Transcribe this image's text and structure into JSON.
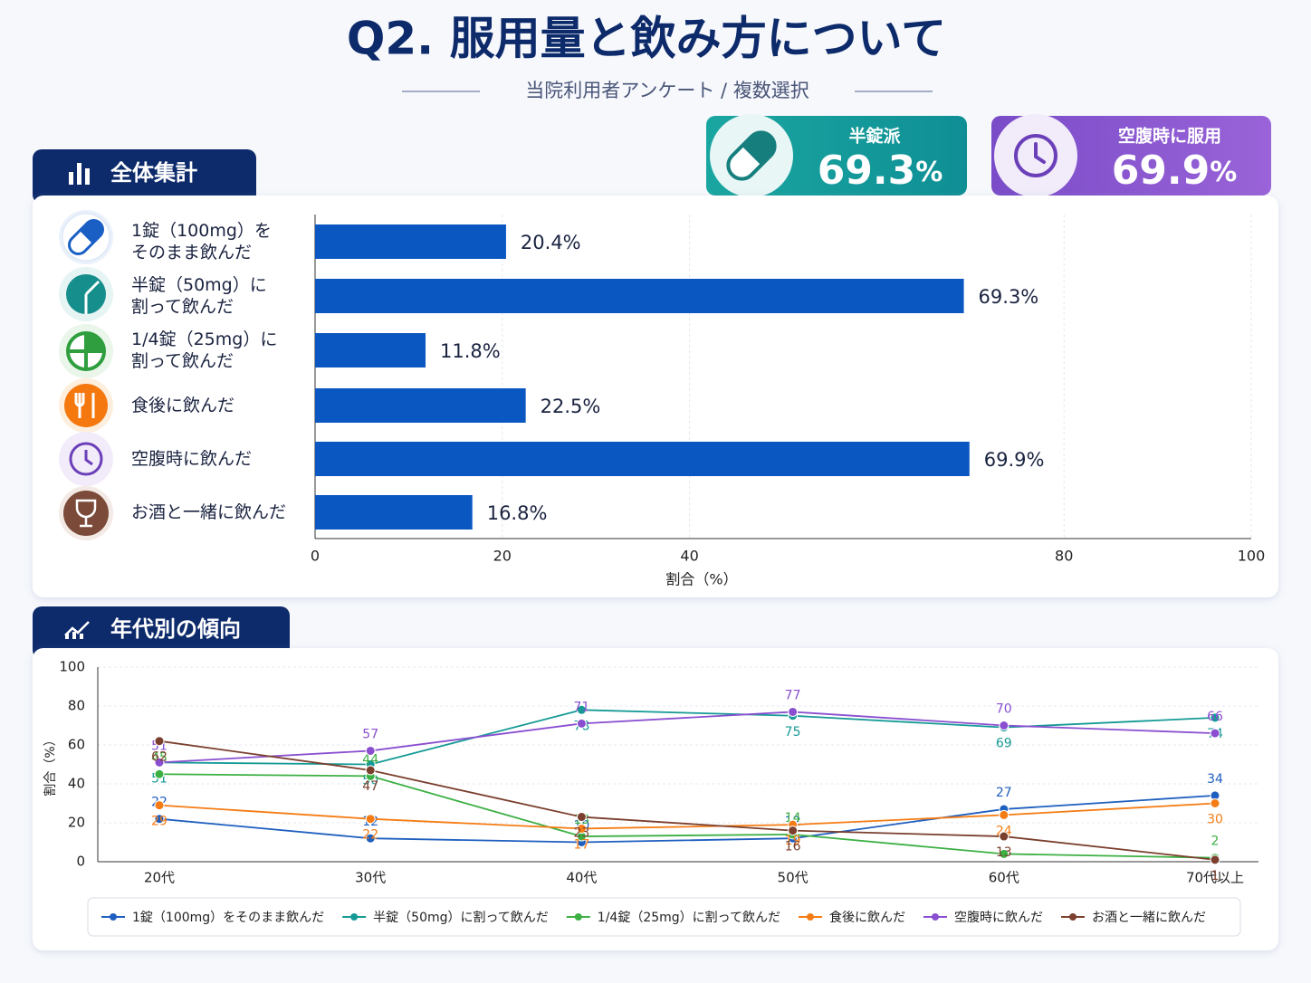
{
  "header": {
    "title": "Q2. 服用量と飲み方について",
    "subtitle": "当院利用者アンケート / 複数選択"
  },
  "cards": [
    {
      "label": "半錠派",
      "value": "69.3",
      "unit": "%"
    },
    {
      "label": "空腹時に服用",
      "value": "69.9",
      "unit": "%"
    }
  ],
  "sections": [
    "全体集計",
    "年代別の傾向"
  ],
  "chart_data": [
    {
      "type": "hbar",
      "categories": [
        "1錠（100mg）を\nそのまま飲んだ",
        "半錠（50mg）に\n割って飲んだ",
        "1/4錠（25mg）に\n割って飲んだ",
        "食後に飲んだ",
        "空腹時に飲んだ",
        "お酒と一緒に飲んだ"
      ],
      "values": [
        20.4,
        69.3,
        11.8,
        22.5,
        69.9,
        16.8
      ],
      "value_labels": [
        "20.4%",
        "69.3%",
        "11.8%",
        "22.5%",
        "69.9%",
        "16.8%"
      ],
      "color": "#0b57c2",
      "xlim": [
        0,
        100
      ],
      "xticks": [
        0,
        20,
        40,
        80,
        100
      ],
      "xlabel": "割合（%）",
      "grid": true
    },
    {
      "type": "line",
      "categories": [
        "20代",
        "30代",
        "40代",
        "50代",
        "60代",
        "70代以上"
      ],
      "series": [
        {
          "name": "1錠（100mg）をそのまま飲んだ",
          "color": "#1f5fbf",
          "values": [
            22,
            12,
            10,
            12,
            27,
            34
          ]
        },
        {
          "name": "半錠（50mg）に割って飲んだ",
          "color": "#169a96",
          "values": [
            51,
            50,
            78,
            75,
            69,
            74
          ]
        },
        {
          "name": "1/4錠（25mg）に割って飲んだ",
          "color": "#3cb043",
          "values": [
            45,
            44,
            13,
            14,
            4,
            2
          ]
        },
        {
          "name": "食後に飲んだ",
          "color": "#f57c14",
          "values": [
            29,
            22,
            17,
            19,
            24,
            30
          ]
        },
        {
          "name": "空腹時に飲んだ",
          "color": "#8a4fd0",
          "values": [
            51,
            57,
            71,
            77,
            70,
            66
          ]
        },
        {
          "name": "お酒と一緒に飲んだ",
          "color": "#7b3f2e",
          "values": [
            62,
            47,
            23,
            16,
            13,
            1
          ]
        }
      ],
      "ylim": [
        0,
        100
      ],
      "yticks": [
        0,
        20,
        40,
        60,
        80,
        100
      ],
      "ylabel": "割合（%）",
      "grid": true,
      "legend": "bottom"
    }
  ]
}
